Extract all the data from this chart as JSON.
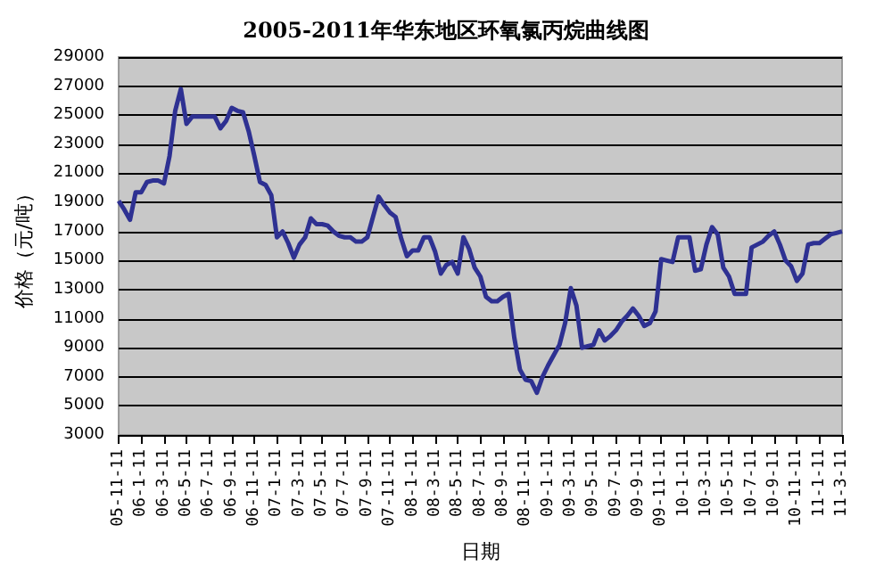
{
  "chart_data": {
    "type": "line",
    "title": "2005-2011年华东地区环氧氯丙烷曲线图",
    "xlabel": "日期",
    "ylabel": "价格（元/吨）",
    "categories": [
      "05-11-11",
      null,
      null,
      null,
      "06-1-11",
      null,
      null,
      null,
      "06-3-11",
      null,
      null,
      null,
      "06-5-11",
      null,
      null,
      null,
      "06-7-11",
      null,
      null,
      null,
      "06-9-11",
      null,
      null,
      null,
      "06-11-11",
      null,
      null,
      null,
      "07-1-11",
      null,
      null,
      null,
      "07-3-11",
      null,
      null,
      null,
      "07-5-11",
      null,
      null,
      null,
      "07-7-11",
      null,
      null,
      null,
      "07-9-11",
      null,
      null,
      null,
      "07-11-11",
      null,
      null,
      null,
      "08-1-11",
      null,
      null,
      null,
      "08-3-11",
      null,
      null,
      null,
      "08-5-11",
      null,
      null,
      null,
      "08-7-11",
      null,
      null,
      null,
      "08-9-11",
      null,
      null,
      null,
      "08-11-11",
      null,
      null,
      null,
      "09-1-11",
      null,
      null,
      null,
      "09-3-11",
      null,
      null,
      null,
      "09-5-11",
      null,
      null,
      null,
      "09-7-11",
      null,
      null,
      null,
      "09-9-11",
      null,
      null,
      null,
      "09-11-11",
      null,
      null,
      null,
      "10-1-11",
      null,
      null,
      null,
      "10-3-11",
      null,
      null,
      null,
      "10-5-11",
      null,
      null,
      null,
      "10-7-11",
      null,
      null,
      null,
      "10-9-11",
      null,
      null,
      null,
      "10-11-11",
      null,
      null,
      null,
      "11-1-11",
      null,
      null,
      null,
      "11-3-11"
    ],
    "series": [
      {
        "color": "#2e3192",
        "values": [
          19100,
          18500,
          17800,
          19700,
          19700,
          20400,
          20500,
          20500,
          20300,
          22200,
          25300,
          26800,
          24400,
          24900,
          24900,
          24900,
          24900,
          24900,
          24100,
          24600,
          25500,
          25300,
          25200,
          23900,
          22200,
          20400,
          20200,
          19500,
          16600,
          17000,
          16200,
          15200,
          16100,
          16600,
          17900,
          17500,
          17500,
          17400,
          17000,
          16700,
          16600,
          16600,
          16300,
          16300,
          16600,
          18000,
          19400,
          18800,
          18300,
          18000,
          16500,
          15300,
          15700,
          15700,
          16600,
          16600,
          15600,
          14100,
          14700,
          14900,
          14100,
          16600,
          15800,
          14500,
          13900,
          12500,
          12200,
          12200,
          12500,
          12700,
          9700,
          7500,
          6800,
          6700,
          5900,
          7000,
          7800,
          8500,
          9200,
          10700,
          13100,
          11900,
          9000,
          9100,
          9200,
          10200,
          9500,
          9800,
          10200,
          10800,
          11200,
          11700,
          11200,
          10500,
          10700,
          11500,
          15100,
          15000,
          14900,
          16600,
          16600,
          16600,
          14300,
          14400,
          16100,
          17300,
          16800,
          14500,
          13900,
          12700,
          12700,
          12700,
          15900,
          16100,
          16300,
          16700,
          17000,
          16100,
          15000,
          14600,
          13600,
          14100,
          16100,
          16200,
          16200,
          16500,
          16800,
          16900,
          17000
        ]
      }
    ],
    "ylim": [
      3000,
      29000
    ],
    "yticks": [
      3000,
      5000,
      7000,
      9000,
      11000,
      13000,
      15000,
      17000,
      19000,
      21000,
      23000,
      25000,
      27000,
      29000
    ],
    "grid": "y"
  }
}
